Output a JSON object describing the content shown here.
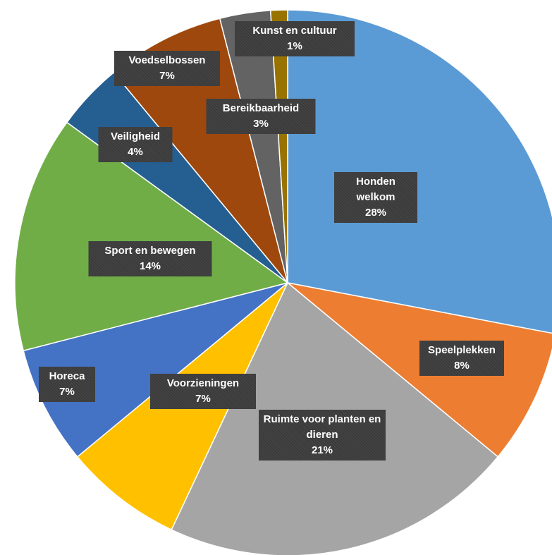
{
  "chart_data": {
    "type": "pie",
    "categories": [
      "Honden welkom",
      "Speelplekken",
      "Ruimte voor planten en dieren",
      "Voorzieningen",
      "Horeca",
      "Sport en bewegen",
      "Veiligheid",
      "Voedselbossen",
      "Bereikbaarheid",
      "Kunst en cultuur"
    ],
    "values": [
      28,
      8,
      21,
      7,
      7,
      14,
      4,
      7,
      3,
      1
    ],
    "value_labels": [
      "28%",
      "8%",
      "21%",
      "7%",
      "7%",
      "14%",
      "4%",
      "7%",
      "3%",
      "1%"
    ],
    "colors": [
      "#5b9bd5",
      "#ed7d31",
      "#a5a5a5",
      "#ffc000",
      "#4472c4",
      "#70ad47",
      "#255e91",
      "#9e480e",
      "#636363",
      "#997300"
    ]
  }
}
